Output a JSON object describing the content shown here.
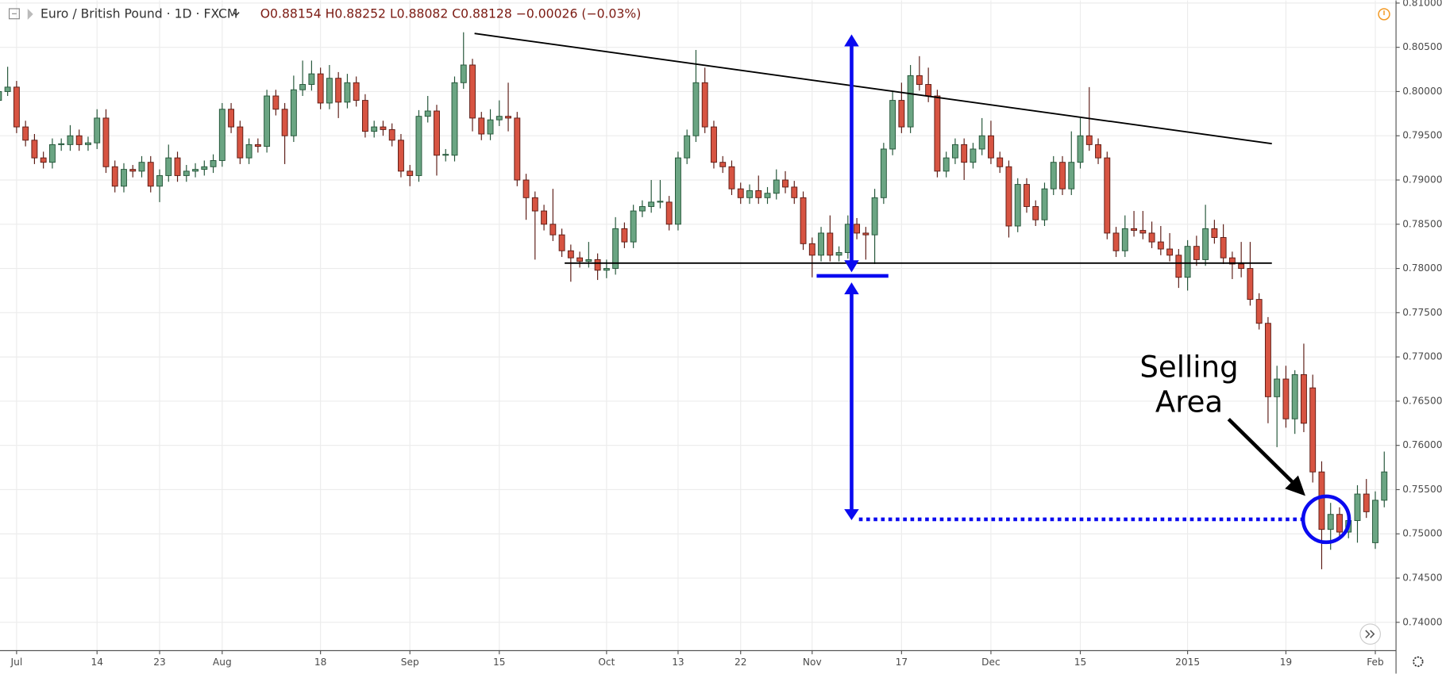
{
  "chart_data": {
    "type": "candlestick",
    "header": {
      "symbol": "Euro / British Pound · 1D · FXCM",
      "quote": "O0.88154 H0.88252 L0.88082 C0.88128 −0.00026 (−0.03%)"
    },
    "annotations": [
      "Selling",
      "Area"
    ],
    "up_color": "#6ba583",
    "up_border": "#225437",
    "down_color": "#d75442",
    "down_border": "#5b1a13",
    "grid": true,
    "ylim": [
      0.7368,
      0.8103
    ],
    "yticks": [
      {
        "value": 0.74,
        "label": "0.74000"
      },
      {
        "value": 0.745,
        "label": "0.74500"
      },
      {
        "value": 0.75,
        "label": "0.75000"
      },
      {
        "value": 0.755,
        "label": "0.75500"
      },
      {
        "value": 0.76,
        "label": "0.76000"
      },
      {
        "value": 0.765,
        "label": "0.76500"
      },
      {
        "value": 0.77,
        "label": "0.77000"
      },
      {
        "value": 0.775,
        "label": "0.77500"
      },
      {
        "value": 0.78,
        "label": "0.78000"
      },
      {
        "value": 0.785,
        "label": "0.78500"
      },
      {
        "value": 0.79,
        "label": "0.79000"
      },
      {
        "value": 0.795,
        "label": "0.79500"
      },
      {
        "value": 0.8,
        "label": "0.80000"
      },
      {
        "value": 0.805,
        "label": "0.80500"
      },
      {
        "value": 0.81,
        "label": "0.81000"
      }
    ],
    "xticks": [
      {
        "value": 2,
        "label": "Jul"
      },
      {
        "value": 11,
        "label": "14"
      },
      {
        "value": 18,
        "label": "23"
      },
      {
        "value": 25,
        "label": "Aug"
      },
      {
        "value": 36,
        "label": "18"
      },
      {
        "value": 46,
        "label": "Sep"
      },
      {
        "value": 56,
        "label": "15"
      },
      {
        "value": 68,
        "label": "Oct"
      },
      {
        "value": 76,
        "label": "13"
      },
      {
        "value": 83,
        "label": "22"
      },
      {
        "value": 91,
        "label": "Nov"
      },
      {
        "value": 101,
        "label": "17"
      },
      {
        "value": 111,
        "label": "Dec"
      },
      {
        "value": 121,
        "label": "15"
      },
      {
        "value": 133,
        "label": "2015"
      },
      {
        "value": 144,
        "label": "19"
      },
      {
        "value": 154,
        "label": "Feb"
      }
    ],
    "ohlc": [
      [
        0.799,
        0.8007,
        0.7983,
        0.8
      ],
      [
        0.8,
        0.8028,
        0.7995,
        0.8005
      ],
      [
        0.8005,
        0.8012,
        0.7953,
        0.796
      ],
      [
        0.796,
        0.7967,
        0.7938,
        0.7945
      ],
      [
        0.7945,
        0.7952,
        0.7918,
        0.7925
      ],
      [
        0.7925,
        0.7932,
        0.7913,
        0.792
      ],
      [
        0.792,
        0.7947,
        0.7913,
        0.794
      ],
      [
        0.794,
        0.7947,
        0.7933,
        0.7941
      ],
      [
        0.794,
        0.7962,
        0.7933,
        0.795
      ],
      [
        0.795,
        0.7957,
        0.7933,
        0.794
      ],
      [
        0.794,
        0.7949,
        0.7933,
        0.7942
      ],
      [
        0.7942,
        0.798,
        0.7935,
        0.797
      ],
      [
        0.797,
        0.798,
        0.7908,
        0.7915
      ],
      [
        0.7915,
        0.7922,
        0.7886,
        0.7893
      ],
      [
        0.7893,
        0.7919,
        0.7886,
        0.7912
      ],
      [
        0.7912,
        0.7917,
        0.7903,
        0.791
      ],
      [
        0.791,
        0.7927,
        0.7903,
        0.792
      ],
      [
        0.792,
        0.7927,
        0.7886,
        0.7893
      ],
      [
        0.7893,
        0.7912,
        0.7875,
        0.7905
      ],
      [
        0.7905,
        0.794,
        0.7898,
        0.7925
      ],
      [
        0.7925,
        0.7932,
        0.7898,
        0.7905
      ],
      [
        0.7905,
        0.7917,
        0.7898,
        0.791
      ],
      [
        0.791,
        0.7919,
        0.7903,
        0.7912
      ],
      [
        0.7912,
        0.7922,
        0.7905,
        0.7915
      ],
      [
        0.7915,
        0.7929,
        0.7908,
        0.7922
      ],
      [
        0.7922,
        0.7987,
        0.7915,
        0.798
      ],
      [
        0.798,
        0.7987,
        0.7953,
        0.796
      ],
      [
        0.796,
        0.7967,
        0.7918,
        0.7925
      ],
      [
        0.7925,
        0.7947,
        0.7918,
        0.794
      ],
      [
        0.794,
        0.7947,
        0.7931,
        0.7938
      ],
      [
        0.7938,
        0.8002,
        0.7931,
        0.7995
      ],
      [
        0.7995,
        0.8002,
        0.7973,
        0.798
      ],
      [
        0.798,
        0.7987,
        0.7918,
        0.795
      ],
      [
        0.795,
        0.8018,
        0.7943,
        0.8002
      ],
      [
        0.8002,
        0.8035,
        0.7995,
        0.8008
      ],
      [
        0.8008,
        0.8035,
        0.8001,
        0.802
      ],
      [
        0.802,
        0.8027,
        0.798,
        0.7987
      ],
      [
        0.7987,
        0.803,
        0.798,
        0.8015
      ],
      [
        0.8015,
        0.8022,
        0.797,
        0.7988
      ],
      [
        0.7988,
        0.802,
        0.7981,
        0.801
      ],
      [
        0.801,
        0.8017,
        0.7983,
        0.799
      ],
      [
        0.799,
        0.7997,
        0.7948,
        0.7955
      ],
      [
        0.7955,
        0.7967,
        0.7948,
        0.796
      ],
      [
        0.796,
        0.7967,
        0.795,
        0.7957
      ],
      [
        0.7957,
        0.7964,
        0.7938,
        0.7945
      ],
      [
        0.7945,
        0.7952,
        0.7903,
        0.791
      ],
      [
        0.791,
        0.7917,
        0.7893,
        0.7905
      ],
      [
        0.7905,
        0.7979,
        0.7898,
        0.7972
      ],
      [
        0.7972,
        0.7995,
        0.7965,
        0.7978
      ],
      [
        0.7978,
        0.7985,
        0.7905,
        0.7928
      ],
      [
        0.7928,
        0.7935,
        0.7921,
        0.7929
      ],
      [
        0.7928,
        0.8017,
        0.7921,
        0.801
      ],
      [
        0.801,
        0.8067,
        0.8003,
        0.803
      ],
      [
        0.803,
        0.8037,
        0.7955,
        0.797
      ],
      [
        0.797,
        0.7977,
        0.7945,
        0.7952
      ],
      [
        0.7952,
        0.798,
        0.7945,
        0.7968
      ],
      [
        0.7968,
        0.799,
        0.7961,
        0.7972
      ],
      [
        0.7972,
        0.801,
        0.7955,
        0.797
      ],
      [
        0.797,
        0.7977,
        0.7893,
        0.79
      ],
      [
        0.79,
        0.7907,
        0.7855,
        0.788
      ],
      [
        0.788,
        0.7887,
        0.781,
        0.7865
      ],
      [
        0.7865,
        0.7872,
        0.7843,
        0.785
      ],
      [
        0.785,
        0.789,
        0.7831,
        0.7838
      ],
      [
        0.7838,
        0.7845,
        0.7813,
        0.782
      ],
      [
        0.782,
        0.7827,
        0.7785,
        0.7812
      ],
      [
        0.7812,
        0.7819,
        0.7801,
        0.7808
      ],
      [
        0.7808,
        0.783,
        0.7801,
        0.781
      ],
      [
        0.781,
        0.7817,
        0.7787,
        0.7798
      ],
      [
        0.7798,
        0.781,
        0.7789,
        0.78
      ],
      [
        0.78,
        0.7858,
        0.7793,
        0.7845
      ],
      [
        0.7845,
        0.7852,
        0.7823,
        0.783
      ],
      [
        0.783,
        0.7872,
        0.7823,
        0.7865
      ],
      [
        0.7865,
        0.7877,
        0.7858,
        0.787
      ],
      [
        0.787,
        0.79,
        0.7863,
        0.7875
      ],
      [
        0.7875,
        0.79,
        0.7868,
        0.7876
      ],
      [
        0.7875,
        0.7882,
        0.7843,
        0.785
      ],
      [
        0.785,
        0.7932,
        0.7843,
        0.7925
      ],
      [
        0.7925,
        0.7957,
        0.7918,
        0.795
      ],
      [
        0.795,
        0.8047,
        0.7943,
        0.801
      ],
      [
        0.801,
        0.8027,
        0.7953,
        0.796
      ],
      [
        0.796,
        0.7967,
        0.7913,
        0.792
      ],
      [
        0.792,
        0.7927,
        0.7908,
        0.7915
      ],
      [
        0.7915,
        0.7922,
        0.7883,
        0.789
      ],
      [
        0.789,
        0.7897,
        0.7873,
        0.788
      ],
      [
        0.788,
        0.7895,
        0.7873,
        0.7888
      ],
      [
        0.7888,
        0.7905,
        0.7873,
        0.788
      ],
      [
        0.788,
        0.7892,
        0.7873,
        0.7885
      ],
      [
        0.7885,
        0.7912,
        0.7878,
        0.79
      ],
      [
        0.79,
        0.791,
        0.7885,
        0.7892
      ],
      [
        0.7892,
        0.7899,
        0.7873,
        0.788
      ],
      [
        0.788,
        0.7887,
        0.7821,
        0.7828
      ],
      [
        0.7828,
        0.7835,
        0.779,
        0.7815
      ],
      [
        0.7815,
        0.7847,
        0.7808,
        0.784
      ],
      [
        0.784,
        0.786,
        0.7808,
        0.7815
      ],
      [
        0.7815,
        0.7825,
        0.7808,
        0.7818
      ],
      [
        0.7818,
        0.786,
        0.7811,
        0.785
      ],
      [
        0.785,
        0.7857,
        0.7833,
        0.784
      ],
      [
        0.784,
        0.7847,
        0.781,
        0.7838
      ],
      [
        0.7838,
        0.789,
        0.7805,
        0.788
      ],
      [
        0.788,
        0.7942,
        0.7873,
        0.7935
      ],
      [
        0.7935,
        0.8,
        0.7928,
        0.799
      ],
      [
        0.799,
        0.801,
        0.7953,
        0.796
      ],
      [
        0.796,
        0.803,
        0.7953,
        0.8018
      ],
      [
        0.8018,
        0.804,
        0.8001,
        0.8008
      ],
      [
        0.8008,
        0.8027,
        0.7988,
        0.7995
      ],
      [
        0.7995,
        0.8002,
        0.7903,
        0.791
      ],
      [
        0.791,
        0.7932,
        0.7903,
        0.7925
      ],
      [
        0.7925,
        0.7947,
        0.7918,
        0.794
      ],
      [
        0.794,
        0.7947,
        0.79,
        0.792
      ],
      [
        0.792,
        0.7942,
        0.7913,
        0.7935
      ],
      [
        0.7935,
        0.797,
        0.7928,
        0.795
      ],
      [
        0.795,
        0.7967,
        0.7918,
        0.7925
      ],
      [
        0.7925,
        0.7932,
        0.7908,
        0.7915
      ],
      [
        0.7915,
        0.7922,
        0.7835,
        0.7848
      ],
      [
        0.7848,
        0.7902,
        0.7841,
        0.7895
      ],
      [
        0.7895,
        0.7902,
        0.7863,
        0.787
      ],
      [
        0.787,
        0.7877,
        0.7848,
        0.7855
      ],
      [
        0.7855,
        0.7897,
        0.7848,
        0.789
      ],
      [
        0.789,
        0.7927,
        0.7883,
        0.792
      ],
      [
        0.792,
        0.7927,
        0.7883,
        0.789
      ],
      [
        0.789,
        0.7955,
        0.7883,
        0.792
      ],
      [
        0.792,
        0.797,
        0.7913,
        0.795
      ],
      [
        0.795,
        0.8005,
        0.7933,
        0.794
      ],
      [
        0.794,
        0.7947,
        0.7918,
        0.7925
      ],
      [
        0.7925,
        0.7932,
        0.7833,
        0.784
      ],
      [
        0.784,
        0.7847,
        0.7813,
        0.782
      ],
      [
        0.782,
        0.786,
        0.7813,
        0.7845
      ],
      [
        0.7845,
        0.7865,
        0.7836,
        0.7843
      ],
      [
        0.7843,
        0.7865,
        0.7833,
        0.784
      ],
      [
        0.784,
        0.7853,
        0.7823,
        0.783
      ],
      [
        0.783,
        0.7848,
        0.7815,
        0.7822
      ],
      [
        0.7822,
        0.784,
        0.7808,
        0.7815
      ],
      [
        0.7815,
        0.7822,
        0.7778,
        0.779
      ],
      [
        0.779,
        0.7832,
        0.7775,
        0.7825
      ],
      [
        0.7825,
        0.7837,
        0.7803,
        0.781
      ],
      [
        0.781,
        0.7872,
        0.7803,
        0.7845
      ],
      [
        0.7845,
        0.7855,
        0.7828,
        0.7835
      ],
      [
        0.7835,
        0.785,
        0.7805,
        0.7812
      ],
      [
        0.7812,
        0.7819,
        0.7788,
        0.7805
      ],
      [
        0.7805,
        0.783,
        0.779,
        0.78
      ],
      [
        0.78,
        0.783,
        0.7758,
        0.7765
      ],
      [
        0.7765,
        0.7772,
        0.7731,
        0.7738
      ],
      [
        0.7738,
        0.7745,
        0.7625,
        0.7655
      ],
      [
        0.7655,
        0.769,
        0.7598,
        0.7675
      ],
      [
        0.7675,
        0.769,
        0.762,
        0.763
      ],
      [
        0.763,
        0.7685,
        0.7613,
        0.768
      ],
      [
        0.768,
        0.7715,
        0.7615,
        0.7625
      ],
      [
        0.7665,
        0.768,
        0.7558,
        0.757
      ],
      [
        0.757,
        0.7582,
        0.746,
        0.7505
      ],
      [
        0.7505,
        0.7535,
        0.7482,
        0.7522
      ],
      [
        0.7522,
        0.753,
        0.7495,
        0.7502
      ],
      [
        0.7502,
        0.7525,
        0.7495,
        0.7515
      ],
      [
        0.7515,
        0.7555,
        0.749,
        0.7545
      ],
      [
        0.7545,
        0.7562,
        0.7518,
        0.7525
      ],
      [
        0.749,
        0.7548,
        0.7483,
        0.7538
      ],
      [
        0.7538,
        0.7593,
        0.753,
        0.757
      ]
    ]
  }
}
